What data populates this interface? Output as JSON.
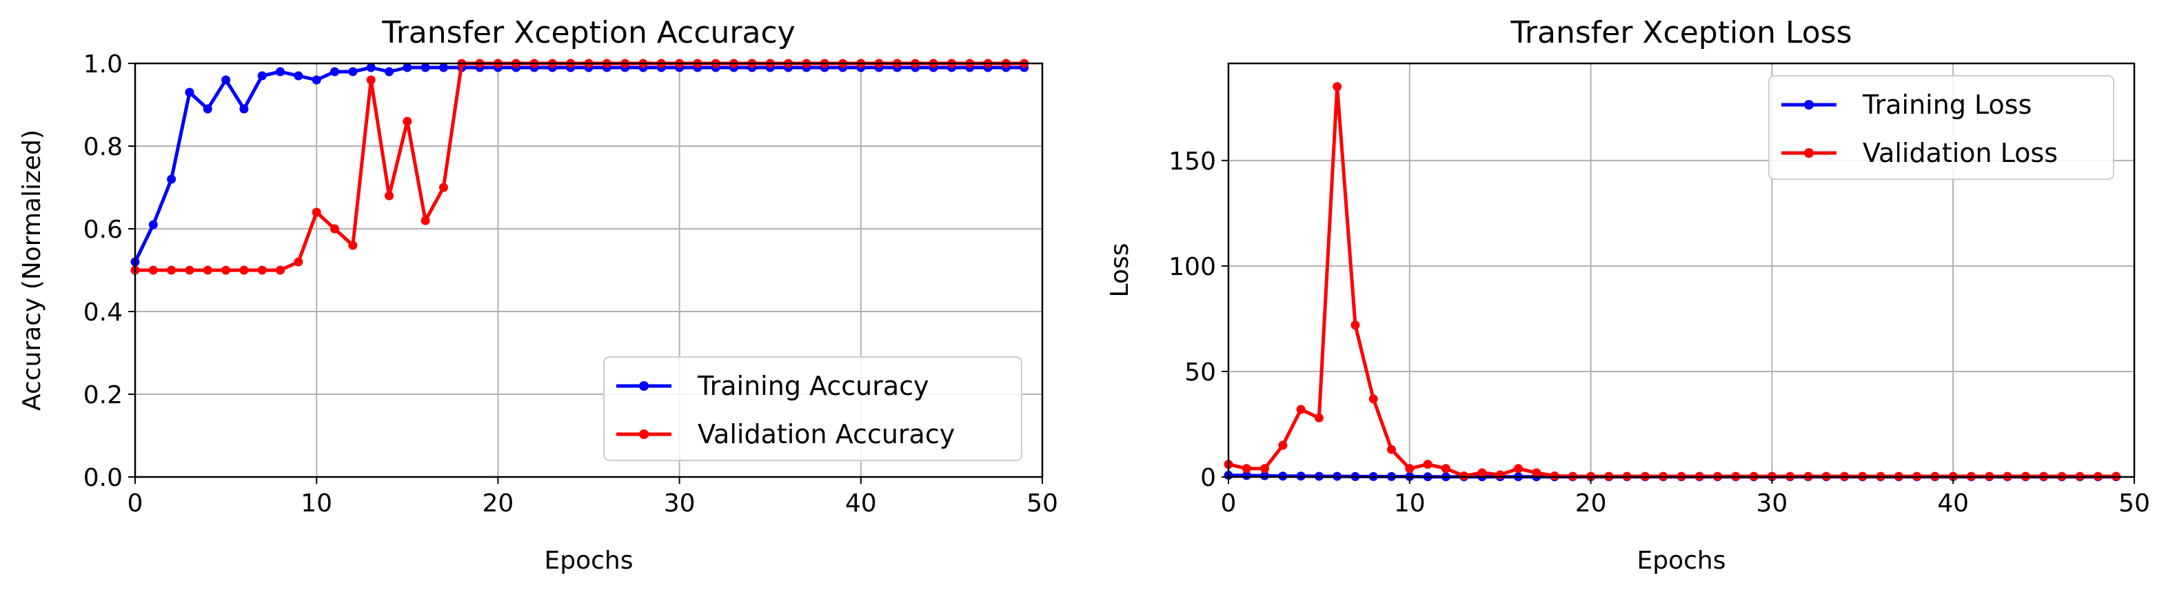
{
  "chart_data": [
    {
      "type": "line",
      "title": "Transfer Xception Accuracy",
      "xlabel": "Epochs",
      "ylabel": "Accuracy (Normalized)",
      "xlim": [
        0,
        50
      ],
      "ylim": [
        0,
        1.0
      ],
      "xticks": [
        "0",
        "10",
        "20",
        "30",
        "40",
        "50"
      ],
      "yticks": [
        "0.0",
        "0.2",
        "0.4",
        "0.6",
        "0.8",
        "1.0"
      ],
      "grid": true,
      "legend_position": "lower right",
      "x": [
        0,
        1,
        2,
        3,
        4,
        5,
        6,
        7,
        8,
        9,
        10,
        11,
        12,
        13,
        14,
        15,
        16,
        17,
        18,
        19,
        20,
        21,
        22,
        23,
        24,
        25,
        26,
        27,
        28,
        29,
        30,
        31,
        32,
        33,
        34,
        35,
        36,
        37,
        38,
        39,
        40,
        41,
        42,
        43,
        44,
        45,
        46,
        47,
        48,
        49
      ],
      "series": [
        {
          "name": "Training Accuracy",
          "color": "#0000ff",
          "values": [
            0.52,
            0.61,
            0.72,
            0.93,
            0.89,
            0.96,
            0.89,
            0.97,
            0.98,
            0.97,
            0.96,
            0.98,
            0.98,
            0.99,
            0.98,
            0.99,
            0.99,
            0.99,
            0.99,
            0.99,
            0.99,
            0.99,
            0.99,
            0.99,
            0.99,
            0.99,
            0.99,
            0.99,
            0.99,
            0.99,
            0.99,
            0.99,
            0.99,
            0.99,
            0.99,
            0.99,
            0.99,
            0.99,
            0.99,
            0.99,
            0.99,
            0.99,
            0.99,
            0.99,
            0.99,
            0.99,
            0.99,
            0.99,
            0.99,
            0.99
          ]
        },
        {
          "name": "Validation Accuracy",
          "color": "#ff0000",
          "values": [
            0.5,
            0.5,
            0.5,
            0.5,
            0.5,
            0.5,
            0.5,
            0.5,
            0.5,
            0.52,
            0.64,
            0.6,
            0.56,
            0.96,
            0.68,
            0.86,
            0.62,
            0.7,
            1.0,
            1.0,
            1.0,
            1.0,
            1.0,
            1.0,
            1.0,
            1.0,
            1.0,
            1.0,
            1.0,
            1.0,
            1.0,
            1.0,
            1.0,
            1.0,
            1.0,
            1.0,
            1.0,
            1.0,
            1.0,
            1.0,
            1.0,
            1.0,
            1.0,
            1.0,
            1.0,
            1.0,
            1.0,
            1.0,
            1.0,
            1.0
          ]
        }
      ]
    },
    {
      "type": "line",
      "title": "Transfer Xception Loss",
      "xlabel": "Epochs",
      "ylabel": "Loss",
      "xlim": [
        0,
        50
      ],
      "ylim": [
        0,
        196
      ],
      "xticks": [
        "0",
        "10",
        "20",
        "30",
        "40",
        "50"
      ],
      "yticks": [
        "0",
        "50",
        "100",
        "150"
      ],
      "grid": true,
      "legend_position": "upper right",
      "x": [
        0,
        1,
        2,
        3,
        4,
        5,
        6,
        7,
        8,
        9,
        10,
        11,
        12,
        13,
        14,
        15,
        16,
        17,
        18,
        19,
        20,
        21,
        22,
        23,
        24,
        25,
        26,
        27,
        28,
        29,
        30,
        31,
        32,
        33,
        34,
        35,
        36,
        37,
        38,
        39,
        40,
        41,
        42,
        43,
        44,
        45,
        46,
        47,
        48,
        49
      ],
      "series": [
        {
          "name": "Training Loss",
          "color": "#0000ff",
          "values": [
            0.8,
            0.7,
            0.6,
            0.4,
            0.4,
            0.3,
            0.3,
            0.2,
            0.2,
            0.2,
            0.2,
            0.1,
            0.1,
            0.1,
            0.1,
            0.1,
            0.1,
            0.1,
            0.1,
            0.1,
            0.1,
            0.1,
            0.1,
            0.1,
            0.1,
            0.1,
            0.1,
            0.1,
            0.1,
            0.1,
            0.1,
            0.1,
            0.1,
            0.1,
            0.1,
            0.1,
            0.1,
            0.1,
            0.1,
            0.1,
            0.1,
            0.1,
            0.1,
            0.1,
            0.1,
            0.1,
            0.1,
            0.1,
            0.1,
            0.1
          ]
        },
        {
          "name": "Validation Loss",
          "color": "#ff0000",
          "values": [
            6,
            4,
            4,
            15,
            32,
            28,
            185,
            72,
            37,
            13,
            4,
            6,
            4,
            0.5,
            2,
            1,
            4,
            2,
            0.5,
            0.3,
            0.3,
            0.3,
            0.3,
            0.3,
            0.3,
            0.3,
            0.3,
            0.3,
            0.3,
            0.3,
            0.3,
            0.3,
            0.3,
            0.3,
            0.3,
            0.3,
            0.3,
            0.3,
            0.3,
            0.3,
            0.3,
            0.3,
            0.3,
            0.3,
            0.3,
            0.3,
            0.3,
            0.3,
            0.3,
            0.3
          ]
        }
      ]
    }
  ]
}
